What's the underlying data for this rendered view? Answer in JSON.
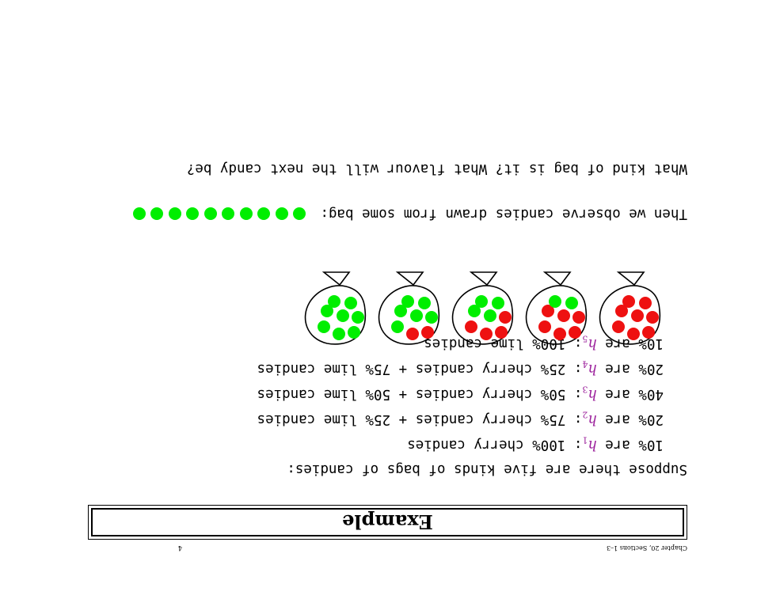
{
  "footer": {
    "text": "Chapter 20, Sections 1–3",
    "page": "4"
  },
  "title": "Example",
  "intro": "Suppose there are five kinds of bags of candies:",
  "hypotheses": [
    {
      "pct": "10% are ",
      "h": "h",
      "sub": "1",
      "desc": ": 100% cherry candies"
    },
    {
      "pct": "20% are ",
      "h": "h",
      "sub": "2",
      "desc": ": 75% cherry candies + 25% lime candies"
    },
    {
      "pct": "40% are ",
      "h": "h",
      "sub": "3",
      "desc": ": 50% cherry candies + 50% lime candies"
    },
    {
      "pct": "20% are ",
      "h": "h",
      "sub": "4",
      "desc": ": 25% cherry candies + 75% lime candies"
    },
    {
      "pct": "10% are ",
      "h": "h",
      "sub": "5",
      "desc": ": 100% lime candies"
    }
  ],
  "bags": [
    {
      "cherry_fraction": 1.0
    },
    {
      "cherry_fraction": 0.75
    },
    {
      "cherry_fraction": 0.5
    },
    {
      "cherry_fraction": 0.25
    },
    {
      "cherry_fraction": 0.0
    }
  ],
  "observation": {
    "text": "Then we observe candies drawn from some bag:",
    "count": 10,
    "candy": "lime"
  },
  "question": "What kind of bag is it?  What flavour will the next candy be?",
  "colors": {
    "cherry": "#ee1111",
    "lime": "#00ee00",
    "hypothesis": "#9b1f9b"
  }
}
